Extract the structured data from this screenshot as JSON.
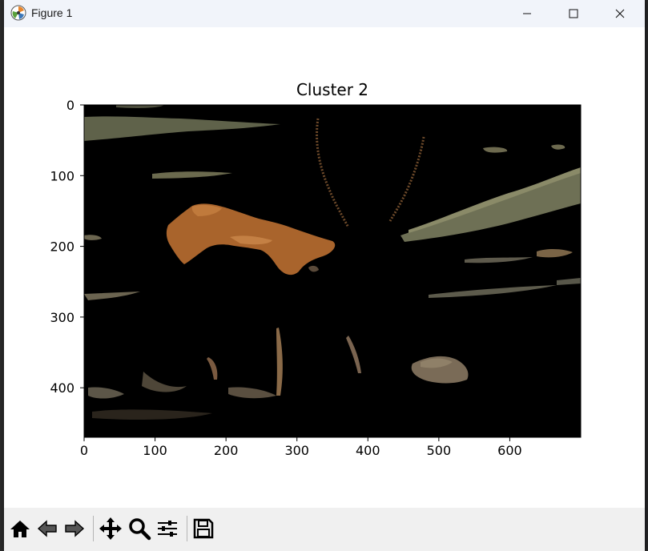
{
  "window": {
    "title": "Figure 1",
    "app_icon": "matplotlib-icon"
  },
  "controls": {
    "minimize": "minimize-icon",
    "maximize": "maximize-icon",
    "close": "close-icon"
  },
  "chart_data": {
    "type": "image",
    "title": "Cluster 2",
    "xlim": [
      0,
      700
    ],
    "ylim": [
      470,
      0
    ],
    "x_ticks": [
      0,
      100,
      200,
      300,
      400,
      500,
      600
    ],
    "y_ticks": [
      0,
      100,
      200,
      300,
      400
    ],
    "grid": false,
    "colors": {
      "background": "#000000",
      "fur": "#b0692e",
      "grass": "#6b6a4e",
      "dirt": "#7a6b57"
    }
  },
  "toolbar": {
    "buttons": [
      "home-icon",
      "back-icon",
      "forward-icon",
      "pan-icon",
      "zoom-icon",
      "configure-subplots-icon",
      "save-icon"
    ]
  }
}
